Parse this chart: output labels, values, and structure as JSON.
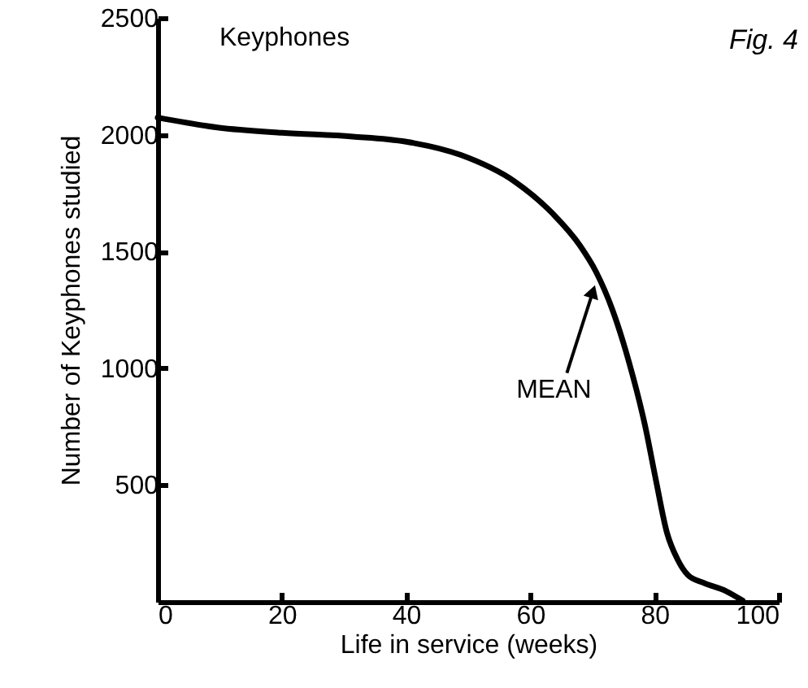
{
  "chart_data": {
    "type": "line",
    "title": "Keyphones",
    "xlabel": "Life in service (weeks)",
    "ylabel": "Number of Keyphones studied",
    "x": [
      0,
      9.6,
      20,
      31.4,
      40,
      48.8,
      57.5,
      63.6,
      68,
      70.6,
      73.2,
      75.9,
      78.5,
      80.2,
      82,
      83.7,
      85.4,
      88,
      91.5,
      94.2
    ],
    "series": [
      {
        "color": "#000000",
        "values": [
          2073,
          2031,
          2008,
          1992,
          1970,
          1913,
          1799,
          1662,
          1525,
          1412,
          1252,
          1025,
          751,
          524,
          296,
          182,
          114,
          80,
          46,
          5
        ]
      }
    ],
    "xlim": [
      0,
      100
    ],
    "ylim": [
      0,
      2500
    ],
    "xticks": [
      0,
      20,
      40,
      60,
      80,
      100
    ],
    "yticks": [
      500,
      1000,
      1500,
      2000,
      2500
    ],
    "annotations": [
      "Fig. 4",
      {
        "text": "MEAN",
        "x": 70.6,
        "y": 1370
      }
    ],
    "grid": false,
    "marker": "none",
    "line_style": "solid"
  }
}
